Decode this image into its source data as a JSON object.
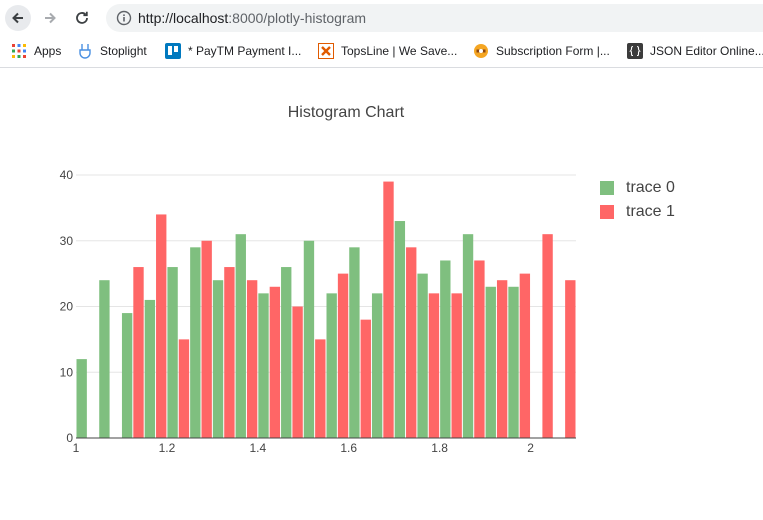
{
  "browser": {
    "url_host": "http://localhost",
    "url_port": ":8000",
    "url_path": "/plotly-histogram",
    "bookmarks": [
      {
        "label": "Apps",
        "icon": "apps-grid-icon"
      },
      {
        "label": "Stoplight",
        "icon": "stoplight-icon"
      },
      {
        "label": "* PayTM Payment I...",
        "icon": "trello-icon"
      },
      {
        "label": "TopsLine | We Save...",
        "icon": "topsline-icon"
      },
      {
        "label": "Subscription Form |...",
        "icon": "subscription-icon"
      },
      {
        "label": "JSON Editor Online...",
        "icon": "json-editor-icon"
      }
    ]
  },
  "chart_data": {
    "type": "bar",
    "title": "Histogram Chart",
    "xlabel": "",
    "ylabel": "",
    "xlim": [
      1,
      2.1
    ],
    "ylim": [
      0,
      40
    ],
    "x_ticks": [
      "1",
      "1.2",
      "1.4",
      "1.6",
      "1.8",
      "2"
    ],
    "y_ticks": [
      "0",
      "10",
      "20",
      "30",
      "40"
    ],
    "bin_size": 0.05,
    "bin_starts": [
      1,
      1.05,
      1.1,
      1.15,
      1.2,
      1.25,
      1.3,
      1.35,
      1.4,
      1.45,
      1.5,
      1.55,
      1.6,
      1.65,
      1.7,
      1.75,
      1.8,
      1.85,
      1.9,
      1.95,
      2,
      2.05
    ],
    "grid": "horizontal",
    "legend_position": "top-right",
    "series": [
      {
        "name": "trace 0",
        "color": "#7fbf7f",
        "values": [
          12,
          24,
          19,
          21,
          26,
          29,
          24,
          31,
          22,
          26,
          30,
          22,
          29,
          22,
          33,
          25,
          27,
          31,
          23,
          23,
          0,
          0
        ]
      },
      {
        "name": "trace 1",
        "color": "#ff6666",
        "values": [
          0,
          0,
          26,
          34,
          15,
          30,
          26,
          24,
          23,
          20,
          15,
          25,
          18,
          39,
          29,
          22,
          22,
          27,
          24,
          25,
          31,
          24
        ]
      }
    ]
  }
}
